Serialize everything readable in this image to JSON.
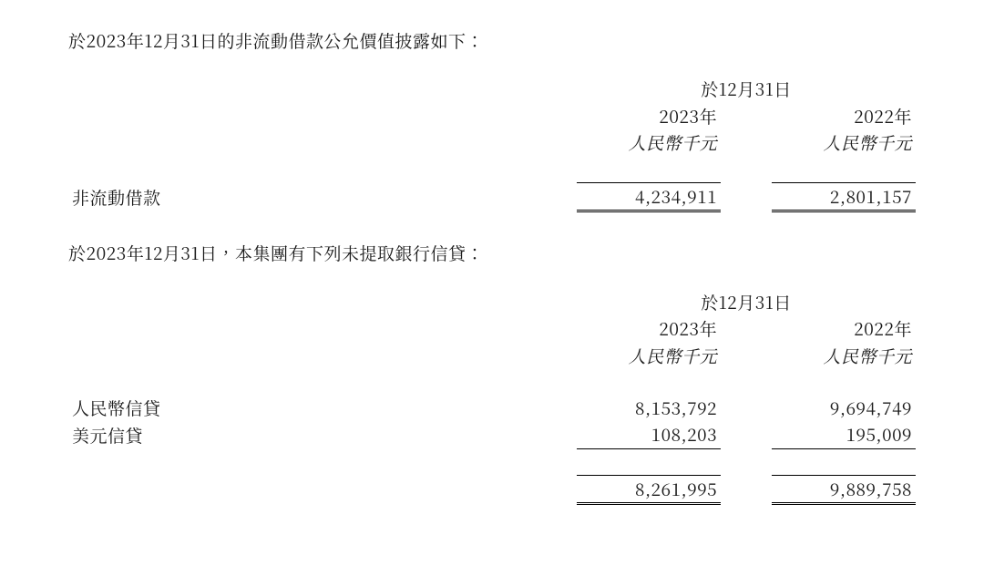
{
  "intro1": "於2023年12月31日的非流動借款公允價值披露如下：",
  "table1": {
    "super_header": "於12月31日",
    "col_2023_year": "2023年",
    "col_2022_year": "2022年",
    "col_2023_unit": "人民幣千元",
    "col_2022_unit": "人民幣千元",
    "rows": [
      {
        "label": "非流動借款",
        "v23": "4,234,911",
        "v22": "2,801,157"
      }
    ]
  },
  "intro2": "於2023年12月31日，本集團有下列未提取銀行信貸：",
  "table2": {
    "super_header": "於12月31日",
    "col_2023_year": "2023年",
    "col_2022_year": "2022年",
    "col_2023_unit": "人民幣千元",
    "col_2022_unit": "人民幣千元",
    "rows": [
      {
        "label": "人民幣信貸",
        "v23": "8,153,792",
        "v22": "9,694,749"
      },
      {
        "label": "美元信貸",
        "v23": "108,203",
        "v22": "195,009"
      }
    ],
    "total": {
      "v23": "8,261,995",
      "v22": "9,889,758"
    }
  },
  "style": {
    "background_color": "#ffffff",
    "text_color": "#1a1a1a",
    "font_family": "serif-cjk",
    "font_size_pt": 14,
    "bold_current_year": true,
    "rule_color": "#000000",
    "double_rule_on_totals": true,
    "columns": [
      "label",
      "gap",
      "2023",
      "gap",
      "2022"
    ],
    "col_align": {
      "label": "left",
      "2023": "right",
      "2022": "right"
    }
  }
}
